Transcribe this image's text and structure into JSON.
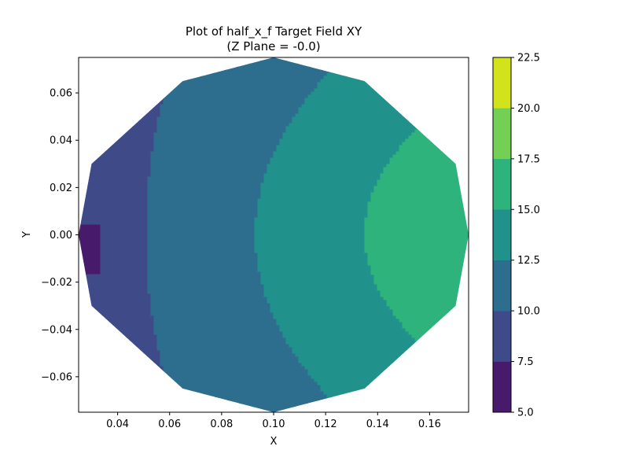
{
  "chart_data": {
    "type": "contour",
    "title_line1": "Plot of half_x_f Target Field XY",
    "title_line2": "(Z Plane = -0.0)",
    "xlabel": "X",
    "ylabel": "Y",
    "xlim": [
      0.025,
      0.175
    ],
    "ylim": [
      -0.075,
      0.075
    ],
    "x_ticks": [
      0.04,
      0.06,
      0.08,
      0.1,
      0.12,
      0.14,
      0.16
    ],
    "x_tick_labels": [
      "0.04",
      "0.06",
      "0.08",
      "0.10",
      "0.12",
      "0.14",
      "0.16"
    ],
    "y_ticks": [
      0.06,
      0.04,
      0.02,
      0.0,
      -0.02,
      -0.04,
      -0.06
    ],
    "y_tick_labels": [
      "0.06",
      "0.04",
      "0.02",
      "0.00",
      "−0.02",
      "−0.04",
      "−0.06"
    ],
    "colorbar": {
      "min": 5.0,
      "max": 22.5,
      "ticks": [
        5.0,
        7.5,
        10.0,
        12.5,
        15.0,
        17.5,
        20.0,
        22.5
      ],
      "tick_labels": [
        "5.0",
        "7.5",
        "10.0",
        "12.5",
        "15.0",
        "17.5",
        "20.0",
        "22.5"
      ],
      "colors": [
        "#481a6c",
        "#3f4a89",
        "#2d6e8e",
        "#21918c",
        "#2eb37c",
        "#74d055",
        "#d2e21b"
      ]
    },
    "contour_levels": [
      {
        "range": [
          5.0,
          7.5
        ],
        "color": "#481a6c"
      },
      {
        "range": [
          7.5,
          10.0
        ],
        "color": "#3f4a89"
      },
      {
        "range": [
          10.0,
          12.5
        ],
        "color": "#2d6e8e"
      },
      {
        "range": [
          12.5,
          15.0
        ],
        "color": "#21918c"
      },
      {
        "range": [
          15.0,
          17.5
        ],
        "color": "#2eb37c"
      },
      {
        "range": [
          17.5,
          20.0
        ],
        "color": "#74d055"
      },
      {
        "range": [
          20.0,
          22.5
        ],
        "color": "#d2e21b"
      }
    ]
  }
}
